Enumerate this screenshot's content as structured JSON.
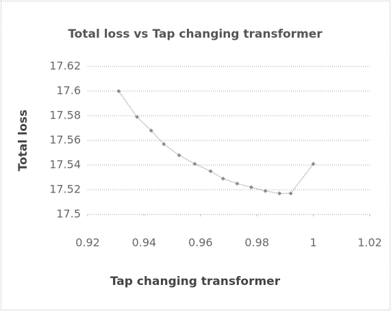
{
  "chart_data": {
    "type": "line",
    "title": "Total loss vs Tap changing transformer",
    "x_label": "Tap changing transformer",
    "y_label": "Total loss",
    "x": [
      0.931,
      0.9375,
      0.9425,
      0.947,
      0.9524,
      0.958,
      0.9636,
      0.968,
      0.973,
      0.978,
      0.983,
      0.988,
      0.992,
      1.0
    ],
    "series": [
      {
        "color": "#8c8c8c",
        "values": [
          17.6,
          17.579,
          17.568,
          17.557,
          17.548,
          17.541,
          17.535,
          17.529,
          17.525,
          17.522,
          17.519,
          17.517,
          17.517,
          17.541
        ]
      }
    ],
    "xlim": [
      0.92,
      1.02
    ],
    "xticks": [
      0.92,
      0.94,
      0.96,
      0.98,
      1,
      1.02
    ],
    "ylim": [
      17.5,
      17.62
    ],
    "yticks": [
      17.5,
      17.52,
      17.54,
      17.56,
      17.58,
      17.6,
      17.62
    ],
    "grid": true
  }
}
